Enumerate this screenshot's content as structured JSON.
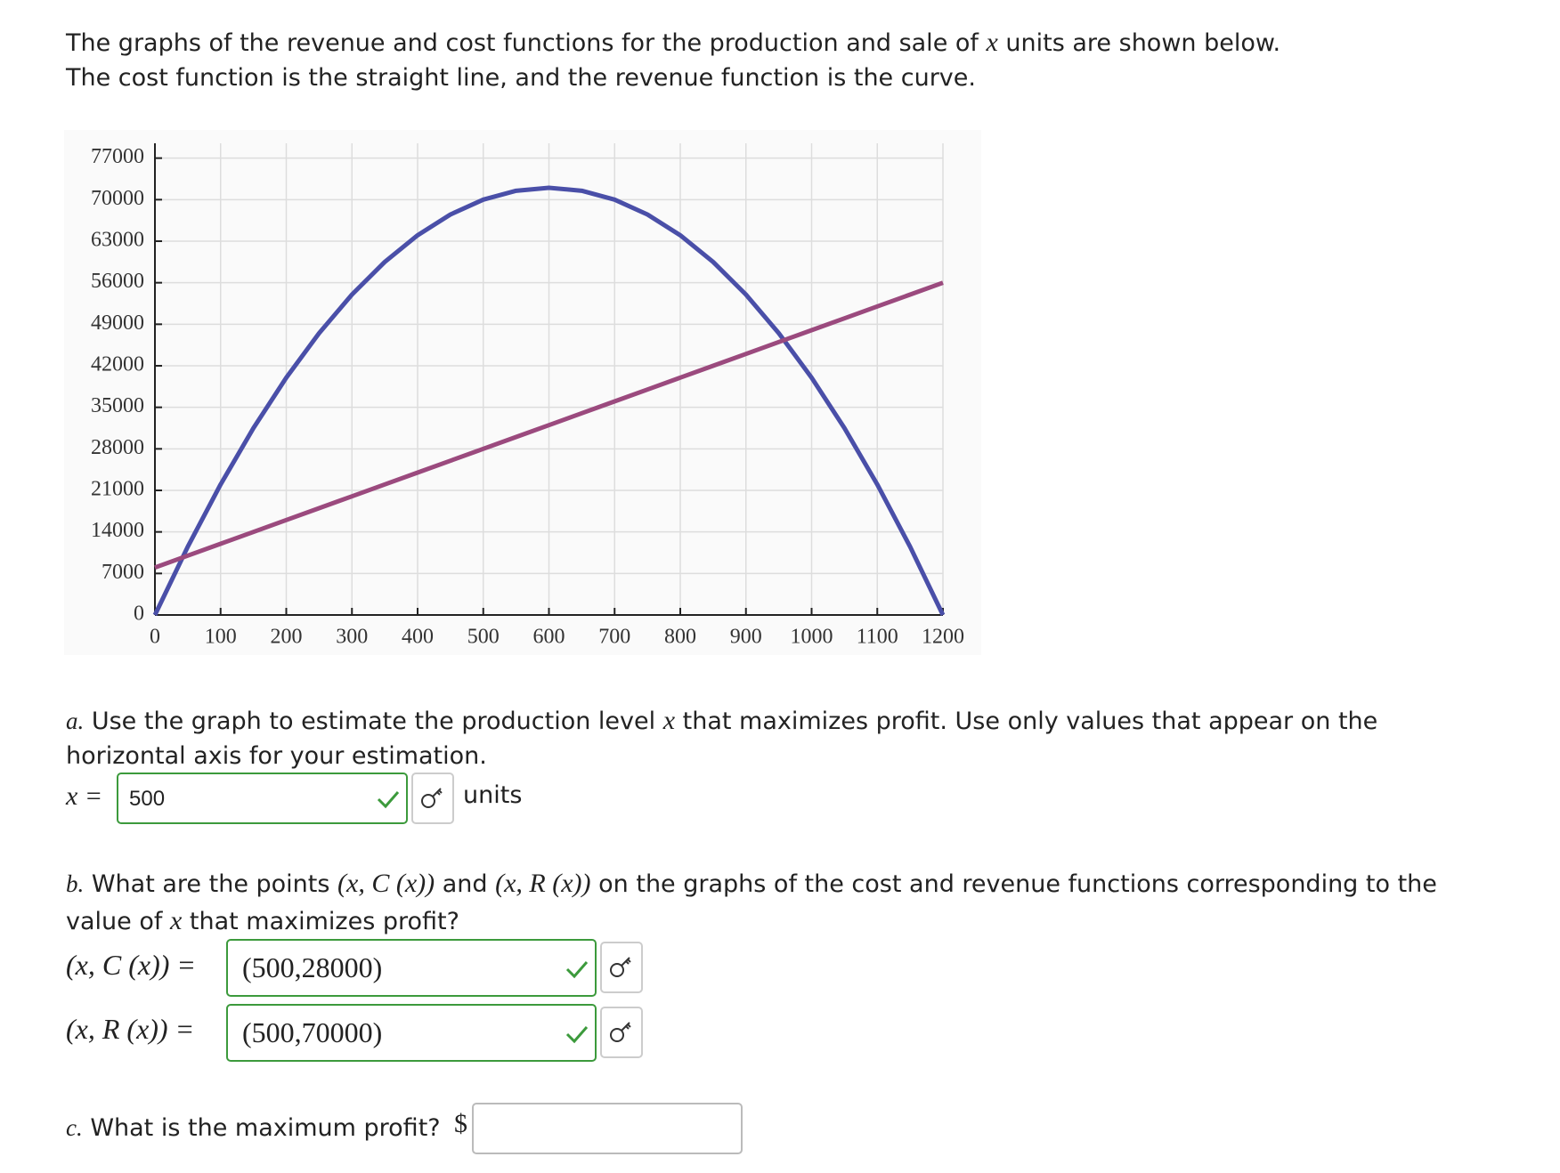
{
  "intro": [
    "The graphs of the revenue and cost functions for the production and sale of",
    "x",
    "units are shown below.",
    "The cost function is the straight line, and the revenue function is the curve."
  ],
  "chart_data": {
    "type": "line",
    "x": [
      0,
      50,
      100,
      150,
      200,
      250,
      300,
      350,
      400,
      450,
      500,
      550,
      600,
      650,
      700,
      750,
      800,
      850,
      900,
      950,
      1000,
      1050,
      1100,
      1150,
      1200
    ],
    "series": [
      {
        "name": "Revenue",
        "color": "#4a4fa8",
        "values": [
          0,
          11500,
          22000,
          31500,
          40000,
          47500,
          54000,
          59500,
          64000,
          67500,
          70000,
          71500,
          72000,
          71500,
          70000,
          67500,
          64000,
          59500,
          54000,
          47500,
          40000,
          31500,
          22000,
          11500,
          0
        ]
      },
      {
        "name": "Cost",
        "color": "#9b4a7e",
        "values": [
          8000,
          10000,
          12000,
          14000,
          16000,
          18000,
          20000,
          22000,
          24000,
          26000,
          28000,
          30000,
          32000,
          34000,
          36000,
          38000,
          40000,
          42000,
          44000,
          46000,
          48000,
          50000,
          52000,
          54000,
          56000
        ]
      }
    ],
    "xlim": [
      0,
      1200
    ],
    "ylim": [
      0,
      79500
    ],
    "xticks": [
      0,
      100,
      200,
      300,
      400,
      500,
      600,
      700,
      800,
      900,
      1000,
      1100,
      1200
    ],
    "yticks": [
      0,
      7000,
      14000,
      21000,
      28000,
      35000,
      42000,
      49000,
      56000,
      63000,
      70000,
      77000
    ],
    "grid": true
  },
  "question_a": {
    "label": "a.",
    "text": [
      "Use the graph to estimate the production level",
      "x",
      "that maximizes profit. Use only values that appear on the horizontal axis for your estimation."
    ],
    "answer_label": "x =",
    "answer": "500",
    "unit": "units"
  },
  "question_b": {
    "label": "b.",
    "text": [
      "What are the points",
      "(x, C (x))",
      "and",
      "(x, R (x))",
      "on the graphs of the cost and revenue functions corresponding to the value of",
      "x",
      "that maximizes profit?"
    ],
    "answers": [
      {
        "label": "(x, C (x)) =",
        "value": "(500,28000)"
      },
      {
        "label": "(x, R (x)) =",
        "value": "(500,70000)"
      }
    ]
  },
  "question_c": {
    "label": "c.",
    "text": "What is the maximum profit?",
    "prefix": "$"
  }
}
